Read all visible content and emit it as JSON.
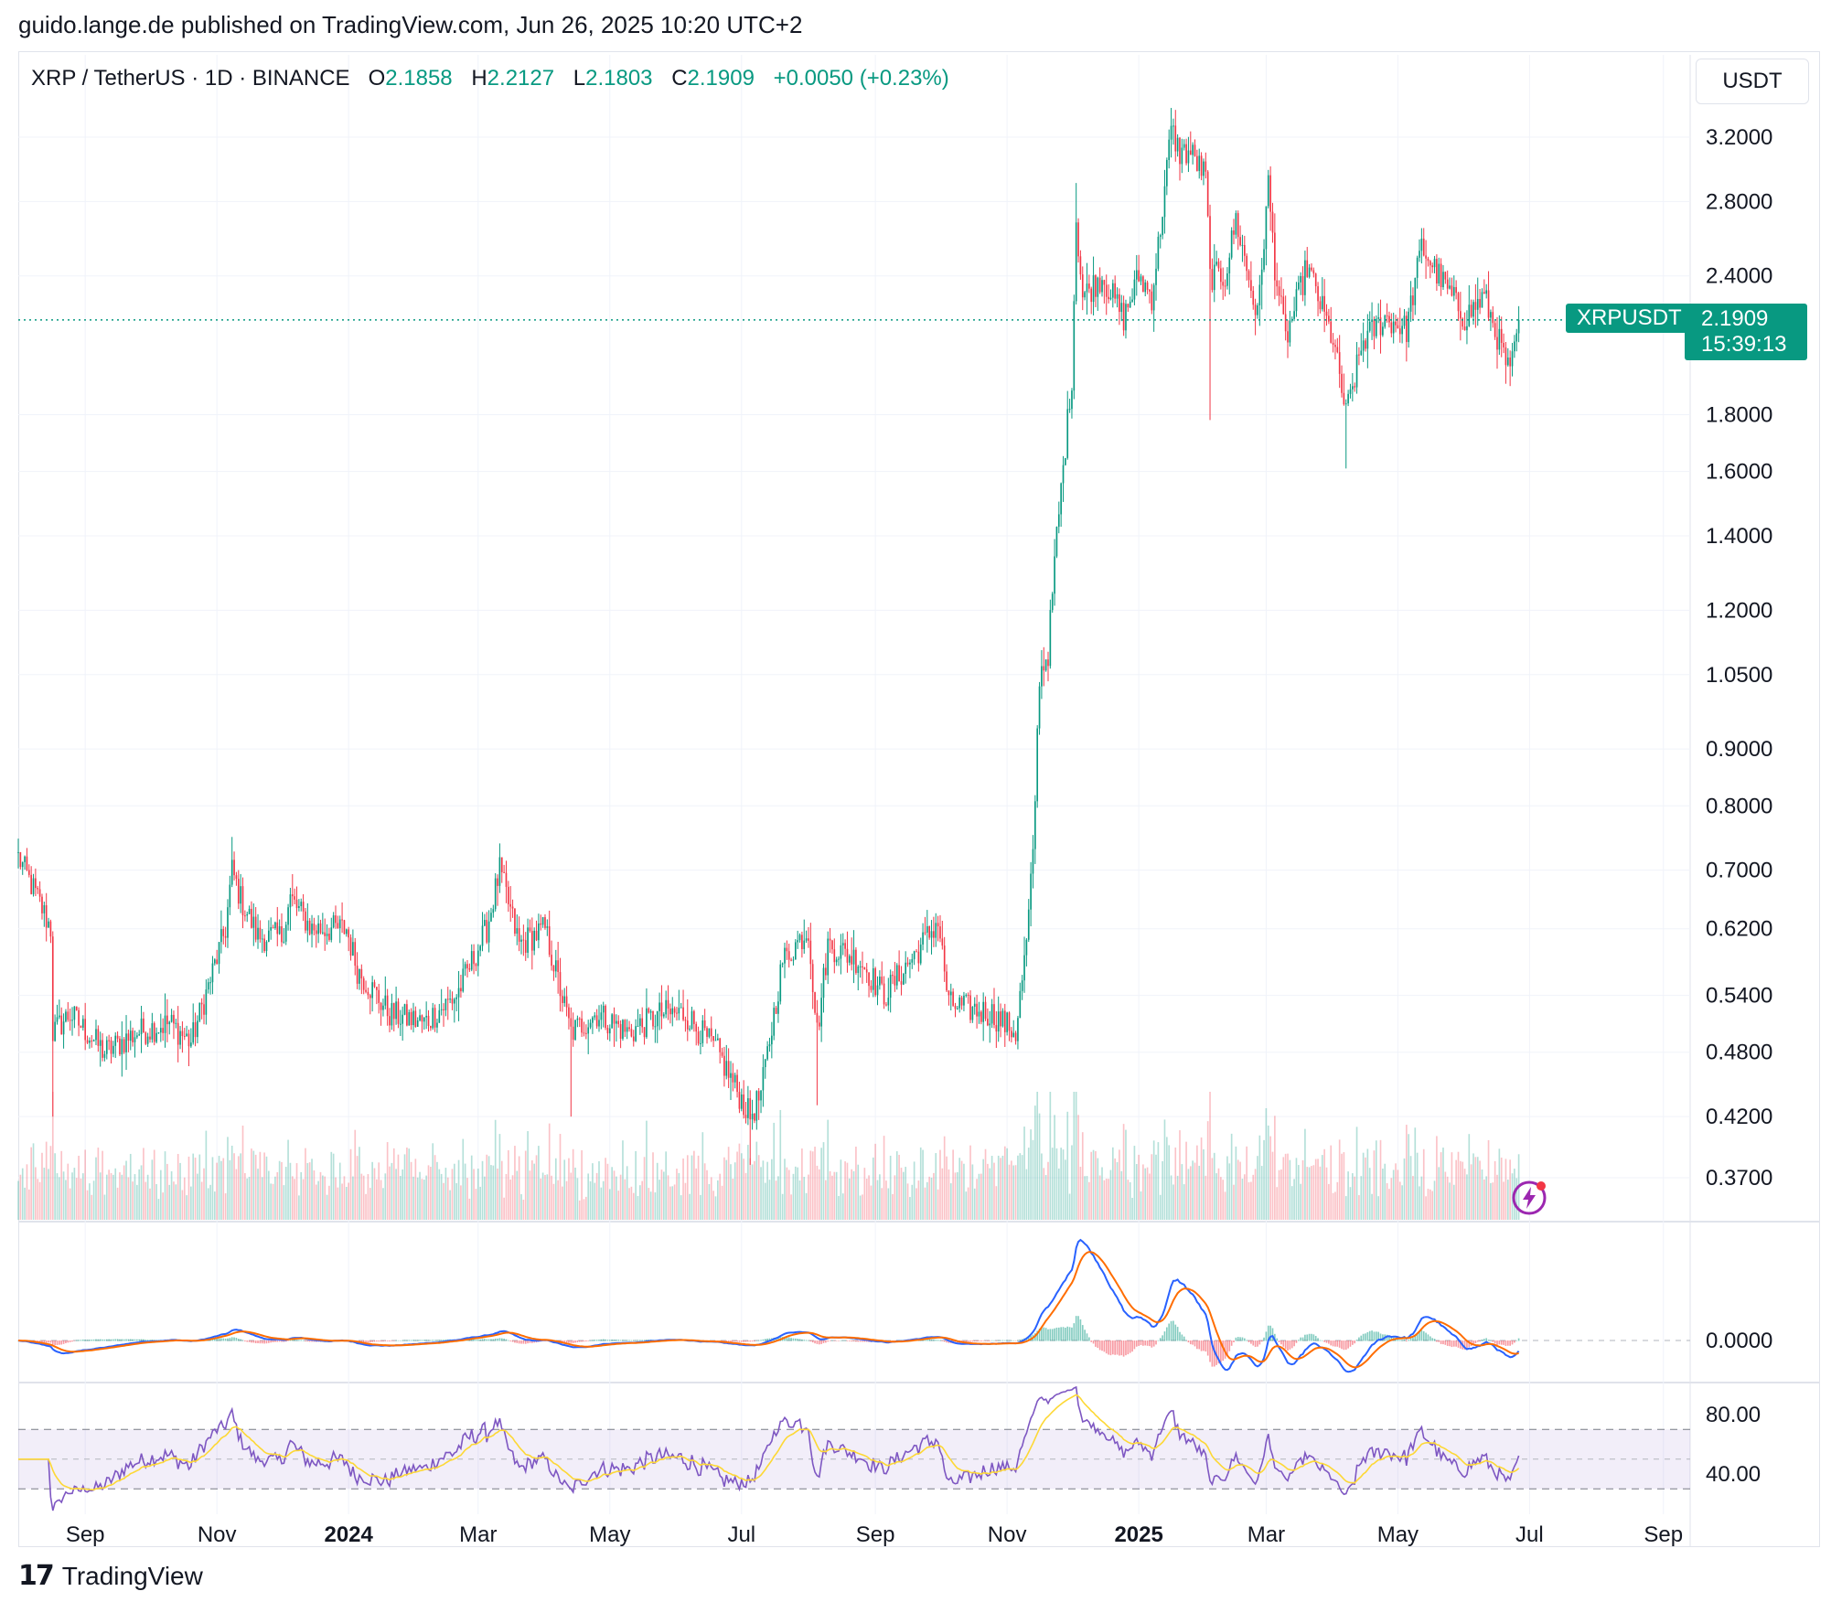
{
  "header": {
    "published_line": "guido.lange.de published on TradingView.com, Jun 26, 2025 10:20 UTC+2"
  },
  "symbol": {
    "title": "XRP / TetherUS · 1D · BINANCE",
    "o_label": "O",
    "o_value": "2.1858",
    "h_label": "H",
    "h_value": "2.2127",
    "l_label": "L",
    "l_value": "2.1803",
    "c_label": "C",
    "c_value": "2.1909",
    "change": "+0.0050 (+0.23%)"
  },
  "currency_button": "USDT",
  "last_price": {
    "ticker": "XRPUSDT",
    "price": "2.1909",
    "countdown": "15:39:13"
  },
  "colors": {
    "up": "#089981",
    "down": "#f23645",
    "macd": "#2962ff",
    "signal": "#ff6d00",
    "rsi": "#7e57c2",
    "rsi_ma": "#fdd835",
    "grid": "#f0f3fa"
  },
  "footer": {
    "logo_text": "TradingView"
  },
  "chart_data": {
    "type": "candlestick",
    "price_scale": "log",
    "y_ticks": [
      "3.2000",
      "2.8000",
      "2.4000",
      "1.8000",
      "1.6000",
      "1.4000",
      "1.2000",
      "1.0500",
      "0.9000",
      "0.8000",
      "0.7000",
      "0.6200",
      "0.5400",
      "0.4800",
      "0.4200",
      "0.3700"
    ],
    "x_ticks": [
      "Sep",
      "Nov",
      "2024",
      "Mar",
      "May",
      "Jul",
      "Sep",
      "Nov",
      "2025",
      "Mar",
      "May",
      "Jul",
      "Sep"
    ],
    "price_path": [
      [
        "2023-08-01",
        0.72
      ],
      [
        "2023-08-10",
        0.66
      ],
      [
        "2023-08-16",
        0.62
      ],
      [
        "2023-08-17",
        0.5
      ],
      [
        "2023-08-25",
        0.52
      ],
      [
        "2023-09-10",
        0.48
      ],
      [
        "2023-09-25",
        0.5
      ],
      [
        "2023-10-10",
        0.51
      ],
      [
        "2023-10-20",
        0.49
      ],
      [
        "2023-10-28",
        0.55
      ],
      [
        "2023-11-05",
        0.62
      ],
      [
        "2023-11-08",
        0.7
      ],
      [
        "2023-11-12",
        0.66
      ],
      [
        "2023-11-20",
        0.61
      ],
      [
        "2023-12-01",
        0.61
      ],
      [
        "2023-12-05",
        0.66
      ],
      [
        "2023-12-15",
        0.62
      ],
      [
        "2023-12-31",
        0.62
      ],
      [
        "2024-01-05",
        0.57
      ],
      [
        "2024-01-20",
        0.52
      ],
      [
        "2024-02-05",
        0.51
      ],
      [
        "2024-02-20",
        0.54
      ],
      [
        "2024-03-05",
        0.62
      ],
      [
        "2024-03-11",
        0.7
      ],
      [
        "2024-03-20",
        0.6
      ],
      [
        "2024-04-01",
        0.62
      ],
      [
        "2024-04-13",
        0.5
      ],
      [
        "2024-04-25",
        0.52
      ],
      [
        "2024-05-10",
        0.5
      ],
      [
        "2024-05-25",
        0.52
      ],
      [
        "2024-06-05",
        0.52
      ],
      [
        "2024-06-20",
        0.48
      ],
      [
        "2024-07-05",
        0.42
      ],
      [
        "2024-07-10",
        0.44
      ],
      [
        "2024-07-20",
        0.58
      ],
      [
        "2024-08-01",
        0.62
      ],
      [
        "2024-08-05",
        0.5
      ],
      [
        "2024-08-10",
        0.6
      ],
      [
        "2024-08-25",
        0.58
      ],
      [
        "2024-09-05",
        0.54
      ],
      [
        "2024-09-20",
        0.59
      ],
      [
        "2024-09-30",
        0.63
      ],
      [
        "2024-10-05",
        0.53
      ],
      [
        "2024-10-25",
        0.52
      ],
      [
        "2024-11-05",
        0.5
      ],
      [
        "2024-11-10",
        0.6
      ],
      [
        "2024-11-13",
        0.72
      ],
      [
        "2024-11-16",
        1.05
      ],
      [
        "2024-11-20",
        1.1
      ],
      [
        "2024-11-24",
        1.4
      ],
      [
        "2024-12-01",
        1.95
      ],
      [
        "2024-12-03",
        2.7
      ],
      [
        "2024-12-06",
        2.3
      ],
      [
        "2024-12-15",
        2.4
      ],
      [
        "2024-12-25",
        2.2
      ],
      [
        "2025-01-01",
        2.4
      ],
      [
        "2025-01-07",
        2.3
      ],
      [
        "2025-01-10",
        2.55
      ],
      [
        "2025-01-16",
        3.25
      ],
      [
        "2025-01-20",
        3.1
      ],
      [
        "2025-01-25",
        3.1
      ],
      [
        "2025-02-01",
        2.95
      ],
      [
        "2025-02-03",
        2.4
      ],
      [
        "2025-02-10",
        2.4
      ],
      [
        "2025-02-15",
        2.7
      ],
      [
        "2025-02-25",
        2.2
      ],
      [
        "2025-03-02",
        2.9
      ],
      [
        "2025-03-05",
        2.45
      ],
      [
        "2025-03-10",
        2.1
      ],
      [
        "2025-03-20",
        2.45
      ],
      [
        "2025-04-01",
        2.1
      ],
      [
        "2025-04-07",
        1.8
      ],
      [
        "2025-04-15",
        2.1
      ],
      [
        "2025-04-25",
        2.2
      ],
      [
        "2025-05-05",
        2.15
      ],
      [
        "2025-05-12",
        2.55
      ],
      [
        "2025-05-20",
        2.4
      ],
      [
        "2025-06-01",
        2.2
      ],
      [
        "2025-06-10",
        2.3
      ],
      [
        "2025-06-15",
        2.15
      ],
      [
        "2025-06-22",
        1.95
      ],
      [
        "2025-06-26",
        2.19
      ]
    ],
    "indicators": [
      "Volume",
      "MACD",
      "RSI"
    ],
    "macd_ticks": [
      "0.0000"
    ],
    "rsi_ticks": [
      "80.00",
      "40.00"
    ],
    "rsi_bands": [
      70,
      30
    ]
  }
}
